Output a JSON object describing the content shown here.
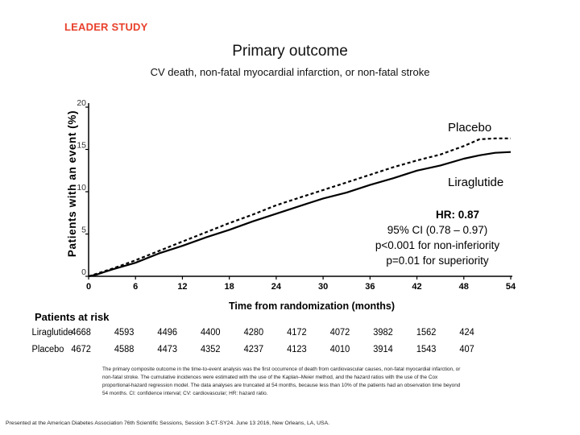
{
  "header": {
    "brand": "LEADER STUDY",
    "title": "Primary outcome",
    "subtitle": "CV death, non-fatal myocardial infarction, or non-fatal stroke"
  },
  "chart_data": {
    "type": "line",
    "title": "Primary outcome",
    "xlabel": "Time from randomization (months)",
    "ylabel": "Patients with an event (%)",
    "xlim": [
      0,
      54
    ],
    "ylim": [
      0,
      20
    ],
    "x_ticks": [
      "0",
      "6",
      "12",
      "18",
      "24",
      "30",
      "36",
      "42",
      "48",
      "54"
    ],
    "y_ticks": [
      "0",
      "5",
      "10",
      "15",
      "20"
    ],
    "series": [
      {
        "name": "Placebo",
        "style": "dashed",
        "x": [
          0,
          1,
          3,
          6,
          9,
          12,
          15,
          18,
          21,
          24,
          27,
          30,
          33,
          36,
          39,
          42,
          45,
          48,
          50,
          52,
          54
        ],
        "values": [
          0,
          0.3,
          0.9,
          1.9,
          3.0,
          4.1,
          5.2,
          6.3,
          7.3,
          8.4,
          9.3,
          10.2,
          11.1,
          12.0,
          12.9,
          13.7,
          14.4,
          15.4,
          16.2,
          16.3,
          16.3
        ]
      },
      {
        "name": "Liraglutide",
        "style": "solid",
        "x": [
          0,
          1,
          3,
          6,
          9,
          12,
          15,
          18,
          21,
          24,
          27,
          30,
          33,
          36,
          39,
          42,
          45,
          48,
          50,
          52,
          54
        ],
        "values": [
          0,
          0.2,
          0.8,
          1.6,
          2.7,
          3.6,
          4.6,
          5.5,
          6.5,
          7.4,
          8.3,
          9.2,
          9.9,
          10.8,
          11.6,
          12.5,
          13.1,
          13.9,
          14.3,
          14.6,
          14.7
        ]
      }
    ],
    "annotations": {
      "hr": "HR: 0.87",
      "ci": "95% CI (0.78 – 0.97)",
      "non_inferiority": "p<0.001 for non-inferiority",
      "superiority": "p=0.01 for superiority"
    }
  },
  "risk_table": {
    "title": "Patients at risk",
    "rows": [
      {
        "label": "Liraglutide",
        "values": [
          "4668",
          "4593",
          "4496",
          "4400",
          "4280",
          "4172",
          "4072",
          "3982",
          "1562",
          "424"
        ]
      },
      {
        "label": "Placebo",
        "values": [
          "4672",
          "4588",
          "4473",
          "4352",
          "4237",
          "4123",
          "4010",
          "3914",
          "1543",
          "407"
        ]
      }
    ]
  },
  "footnote": "The primary composite outcome in the time-to-event analysis was the first occurrence of death from cardiovascular causes, non-fatal myocardial infarction, or non-fatal stroke. The cumulative incidences were estimated with the use of the Kaplan–Meier method, and the hazard ratios with the use of the Cox proportional-hazard regression model. The data analyses are truncated at 54 months, because less than 10% of the patients had an observation time beyond 54 months. CI: confidence interval; CV: cardiovascular; HR: hazard ratio.",
  "credit": "Presented at the American Diabetes Association 76th Scientific Sessions, Session 3-CT-SY24. June 13 2016, New Orleans, LA, USA."
}
